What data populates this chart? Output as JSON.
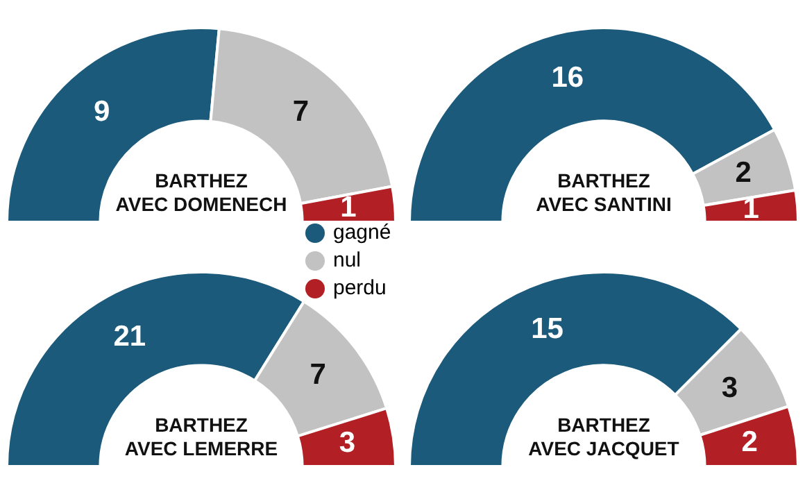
{
  "chart_data": [
    {
      "type": "donut",
      "title": "BARTHEZ\nAVEC DOMENECH",
      "categories": [
        "gagné",
        "nul",
        "perdu"
      ],
      "values": [
        9,
        7,
        1
      ],
      "colors": [
        "#1b5a7a",
        "#c2c2c2",
        "#b21f24"
      ],
      "data_labels": true,
      "legend": "bottom right"
    },
    {
      "type": "donut",
      "title": "BARTHEZ\nAVEC SANTINI",
      "categories": [
        null,
        null,
        null
      ],
      "values": [
        16,
        2,
        1
      ],
      "colors": [
        "#1b5a7a",
        "#c2c2c2",
        "#b21f24"
      ],
      "data_labels": true
    },
    {
      "type": "donut",
      "title": "BARTHEZ\nAVEC LEMERRE",
      "categories": [
        null,
        null,
        null
      ],
      "values": [
        21,
        7,
        3
      ],
      "colors": [
        "#1b5a7a",
        "#c2c2c2",
        "#b21f24"
      ],
      "data_labels": true
    },
    {
      "type": "donut",
      "title": "BARTHEZ\nAVEC JACQUET",
      "categories": [
        null,
        null,
        null
      ],
      "values": [
        15,
        3,
        2
      ],
      "colors": [
        "#1b5a7a",
        "#c2c2c2",
        "#b21f24"
      ],
      "data_labels": true
    }
  ]
}
